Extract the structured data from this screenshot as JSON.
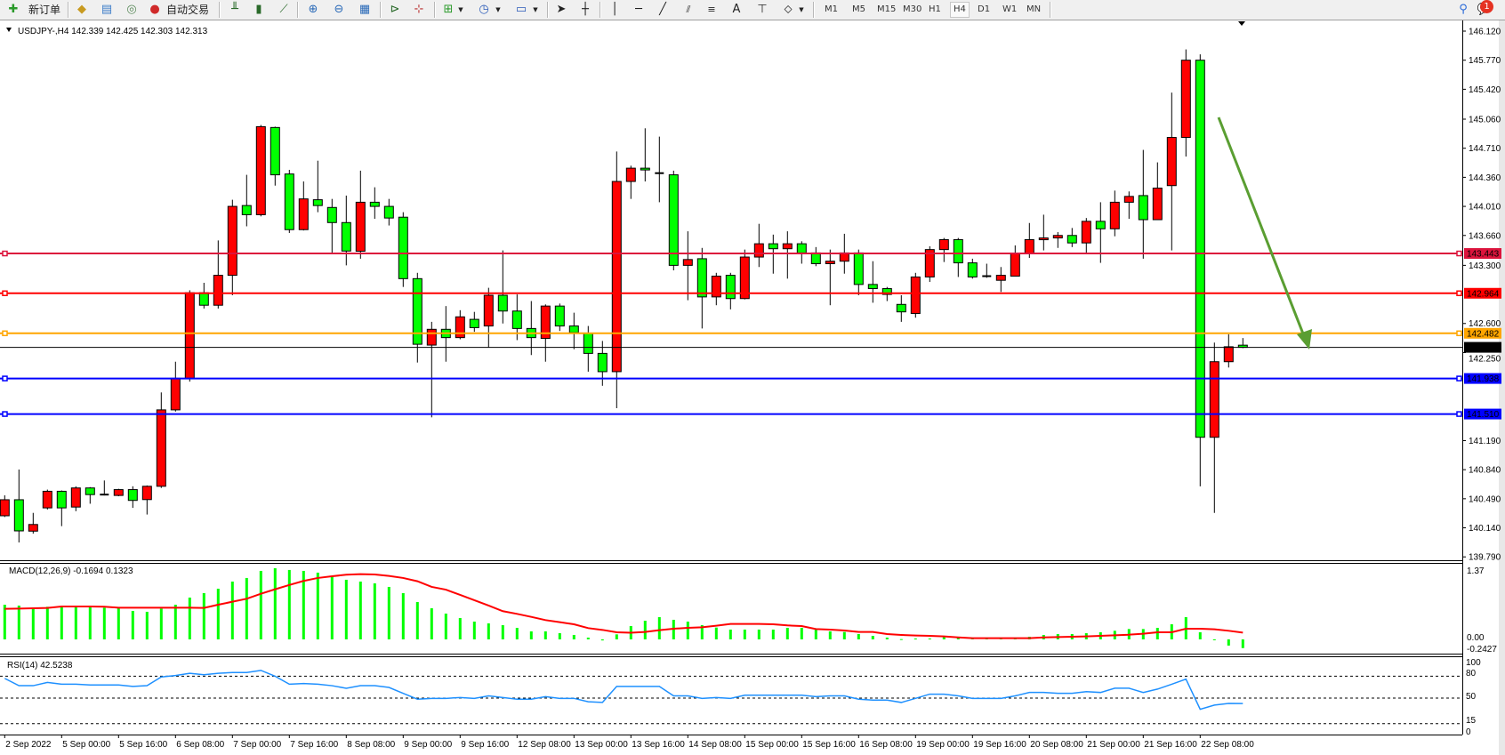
{
  "toolbar": {
    "new_order_label": "新订单",
    "auto_trading_label": "自动交易",
    "timeframes": [
      "M1",
      "M5",
      "M15",
      "M30",
      "H1",
      "H4",
      "D1",
      "W1",
      "MN"
    ],
    "active_timeframe": "H4",
    "text_tool_label": "A",
    "notification_count": "1"
  },
  "chart": {
    "symbol_header": "USDJPY-,H4  142.339 142.425 142.303 142.313",
    "colors": {
      "bull": "#ff0000",
      "bear": "#00ff00",
      "background": "#ffffff",
      "grid_axis": "#000000"
    },
    "price_axis_ticks": [
      "146.120",
      "145.770",
      "145.420",
      "145.060",
      "144.710",
      "144.360",
      "144.010",
      "143.660",
      "143.300",
      "142.600",
      "142.250",
      "141.190",
      "140.840",
      "140.490",
      "140.140",
      "139.790"
    ],
    "horizontal_lines": [
      {
        "price": "143.443",
        "color": "#dc143c"
      },
      {
        "price": "142.964",
        "color": "#ff0000"
      },
      {
        "price": "142.482",
        "color": "#ffa500"
      },
      {
        "price": "142.313",
        "color": "#000000"
      },
      {
        "price": "141.938",
        "color": "#0000ff"
      },
      {
        "price": "141.510",
        "color": "#0000ff"
      }
    ],
    "trend_arrow_color": "#5a9e32",
    "candles": [
      [
        140.285,
        140.531,
        140.27,
        140.478
      ],
      [
        140.478,
        140.842,
        139.964,
        140.103
      ],
      [
        140.1,
        140.32,
        140.07,
        140.18
      ],
      [
        140.38,
        140.6,
        140.36,
        140.58
      ],
      [
        140.58,
        140.59,
        140.16,
        140.38
      ],
      [
        140.39,
        140.64,
        140.34,
        140.62
      ],
      [
        140.62,
        140.63,
        140.43,
        140.54
      ],
      [
        140.54,
        140.71,
        140.53,
        140.54
      ],
      [
        140.53,
        140.61,
        140.52,
        140.6
      ],
      [
        140.6,
        140.64,
        140.38,
        140.47
      ],
      [
        140.48,
        140.65,
        140.3,
        140.64
      ],
      [
        140.64,
        141.77,
        140.62,
        141.56
      ],
      [
        141.56,
        142.14,
        141.54,
        141.94
      ],
      [
        141.94,
        143.0,
        141.9,
        142.97
      ],
      [
        142.97,
        143.09,
        142.78,
        142.82
      ],
      [
        142.82,
        143.6,
        142.78,
        143.18
      ],
      [
        143.18,
        144.09,
        142.94,
        144.01
      ],
      [
        144.02,
        144.39,
        143.77,
        143.91
      ],
      [
        143.91,
        144.99,
        143.89,
        144.97
      ],
      [
        144.96,
        144.97,
        144.26,
        144.39
      ],
      [
        144.4,
        144.45,
        143.69,
        143.73
      ],
      [
        143.73,
        144.31,
        143.72,
        144.1
      ],
      [
        144.09,
        144.56,
        143.94,
        144.02
      ],
      [
        143.997,
        144.1,
        143.45,
        143.815
      ],
      [
        143.815,
        144.14,
        143.3,
        143.472
      ],
      [
        143.47,
        144.44,
        143.38,
        144.06
      ],
      [
        144.06,
        144.24,
        143.86,
        144.01
      ],
      [
        144.01,
        144.1,
        143.78,
        143.87
      ],
      [
        143.88,
        143.94,
        143.04,
        143.14
      ],
      [
        143.14,
        143.21,
        142.13,
        142.35
      ],
      [
        142.34,
        142.62,
        141.47,
        142.53
      ],
      [
        142.53,
        142.81,
        142.14,
        142.43
      ],
      [
        142.43,
        142.76,
        142.41,
        142.68
      ],
      [
        142.65,
        142.74,
        142.5,
        142.55
      ],
      [
        142.57,
        143.03,
        142.31,
        142.94
      ],
      [
        142.94,
        143.48,
        142.6,
        142.75
      ],
      [
        142.75,
        142.95,
        142.4,
        142.54
      ],
      [
        142.54,
        142.87,
        142.22,
        142.43
      ],
      [
        142.42,
        142.83,
        142.14,
        142.81
      ],
      [
        142.81,
        142.84,
        142.51,
        142.57
      ],
      [
        142.57,
        142.73,
        142.29,
        142.49
      ],
      [
        142.48,
        142.57,
        142.02,
        142.24
      ],
      [
        142.24,
        142.39,
        141.85,
        142.02
      ],
      [
        142.02,
        144.67,
        141.58,
        144.31
      ],
      [
        144.31,
        144.5,
        144.1,
        144.47
      ],
      [
        144.47,
        144.95,
        144.31,
        144.45
      ],
      [
        144.41,
        144.85,
        144.06,
        144.41
      ],
      [
        144.39,
        144.44,
        143.24,
        143.3
      ],
      [
        143.3,
        143.71,
        142.88,
        143.37
      ],
      [
        143.38,
        143.51,
        142.54,
        142.92
      ],
      [
        142.92,
        143.21,
        142.82,
        143.17
      ],
      [
        143.18,
        143.21,
        142.77,
        142.9
      ],
      [
        142.9,
        143.49,
        142.89,
        143.4
      ],
      [
        143.4,
        143.8,
        143.28,
        143.56
      ],
      [
        143.56,
        143.67,
        143.2,
        143.5
      ],
      [
        143.5,
        143.71,
        143.14,
        143.56
      ],
      [
        143.56,
        143.59,
        143.32,
        143.45
      ],
      [
        143.45,
        143.52,
        143.29,
        143.32
      ],
      [
        143.32,
        143.49,
        142.82,
        143.35
      ],
      [
        143.35,
        143.68,
        143.2,
        143.45
      ],
      [
        143.45,
        143.49,
        142.94,
        143.07
      ],
      [
        143.07,
        143.35,
        142.85,
        143.02
      ],
      [
        143.02,
        143.04,
        142.87,
        142.95
      ],
      [
        142.83,
        142.94,
        142.62,
        142.74
      ],
      [
        142.72,
        143.21,
        142.67,
        143.16
      ],
      [
        143.16,
        143.53,
        143.1,
        143.49
      ],
      [
        143.49,
        143.63,
        143.34,
        143.61
      ],
      [
        143.61,
        143.63,
        143.16,
        143.33
      ],
      [
        143.33,
        143.38,
        143.14,
        143.16
      ],
      [
        143.17,
        143.32,
        143.15,
        143.17
      ],
      [
        143.12,
        143.28,
        142.98,
        143.18
      ],
      [
        143.17,
        143.54,
        143.17,
        143.44
      ],
      [
        143.44,
        143.81,
        143.39,
        143.61
      ],
      [
        143.61,
        143.91,
        143.48,
        143.63
      ],
      [
        143.63,
        143.7,
        143.51,
        143.66
      ],
      [
        143.66,
        143.75,
        143.52,
        143.57
      ],
      [
        143.57,
        143.87,
        143.45,
        143.83
      ],
      [
        143.83,
        144.06,
        143.33,
        143.74
      ],
      [
        143.74,
        144.2,
        143.65,
        144.06
      ],
      [
        144.06,
        144.19,
        143.86,
        144.13
      ],
      [
        144.14,
        144.69,
        143.38,
        143.85
      ],
      [
        143.85,
        144.54,
        143.85,
        144.23
      ],
      [
        144.26,
        145.38,
        143.48,
        144.84
      ],
      [
        144.84,
        145.9,
        144.61,
        145.77
      ],
      [
        145.77,
        145.84,
        140.64,
        141.23
      ],
      [
        141.23,
        142.37,
        140.32,
        142.14
      ],
      [
        142.14,
        142.47,
        142.07,
        142.32
      ],
      [
        142.339,
        142.425,
        142.303,
        142.313
      ]
    ],
    "price_range": [
      139.79,
      146.12
    ]
  },
  "macd": {
    "title": "MACD(12,26,9) -0.1694 0.1323",
    "axis_labels": [
      "1.37",
      "0.00",
      "-0.2427"
    ],
    "range": [
      -0.2427,
      1.37
    ],
    "histogram_color": "#00ff00",
    "signal_color": "#ff0000",
    "histogram": [
      0.676,
      0.659,
      0.6,
      0.636,
      0.647,
      0.642,
      0.642,
      0.618,
      0.607,
      0.555,
      0.538,
      0.601,
      0.676,
      0.815,
      0.902,
      0.988,
      1.127,
      1.197,
      1.335,
      1.387,
      1.353,
      1.335,
      1.301,
      1.231,
      1.162,
      1.127,
      1.092,
      1.023,
      0.902,
      0.728,
      0.607,
      0.503,
      0.416,
      0.347,
      0.312,
      0.277,
      0.225,
      0.156,
      0.156,
      0.121,
      0.087,
      0.035,
      -0.02,
      0.098,
      0.26,
      0.364,
      0.434,
      0.382,
      0.347,
      0.277,
      0.231,
      0.191,
      0.191,
      0.191,
      0.191,
      0.225,
      0.225,
      0.191,
      0.156,
      0.145,
      0.104,
      0.069,
      0.035,
      0.006,
      0.017,
      0.017,
      0.052,
      0.04,
      0.035,
      0.017,
      0.017,
      0.017,
      0.052,
      0.087,
      0.104,
      0.104,
      0.121,
      0.139,
      0.168,
      0.202,
      0.202,
      0.225,
      0.295,
      0.434,
      0.139,
      -0.012,
      -0.121,
      -0.1694
    ],
    "signal": [
      0.595,
      0.601,
      0.607,
      0.613,
      0.642,
      0.642,
      0.642,
      0.636,
      0.618,
      0.618,
      0.618,
      0.618,
      0.618,
      0.618,
      0.613,
      0.676,
      0.734,
      0.792,
      0.89,
      0.977,
      1.06,
      1.139,
      1.197,
      1.231,
      1.26,
      1.272,
      1.266,
      1.237,
      1.197,
      1.133,
      1.023,
      0.97,
      0.867,
      0.763,
      0.66,
      0.55,
      0.497,
      0.439,
      0.376,
      0.335,
      0.295,
      0.22,
      0.185,
      0.139,
      0.13,
      0.145,
      0.179,
      0.208,
      0.225,
      0.237,
      0.266,
      0.301,
      0.301,
      0.301,
      0.295,
      0.272,
      0.26,
      0.202,
      0.191,
      0.173,
      0.145,
      0.145,
      0.104,
      0.087,
      0.075,
      0.069,
      0.058,
      0.04,
      0.023,
      0.023,
      0.023,
      0.023,
      0.023,
      0.04,
      0.046,
      0.052,
      0.058,
      0.069,
      0.081,
      0.092,
      0.11,
      0.139,
      0.139,
      0.208,
      0.208,
      0.197,
      0.168,
      0.1323
    ]
  },
  "rsi": {
    "title": "RSI(14) 42.5238",
    "axis_labels": [
      "100",
      "80",
      "50",
      "15",
      "0"
    ],
    "levels": [
      80,
      50,
      15
    ],
    "line_color": "#1e90ff",
    "values": [
      77,
      67,
      67,
      71.5,
      69,
      69,
      68,
      68,
      68,
      66,
      67,
      79,
      81,
      84,
      82,
      84,
      85,
      85,
      88,
      80,
      69,
      70,
      69,
      67,
      63.5,
      67,
      67,
      64.6,
      56.5,
      48.5,
      49.6,
      49.6,
      50.8,
      49.6,
      53,
      50.8,
      48.5,
      48.5,
      52,
      49.6,
      49.6,
      45,
      44,
      66,
      66,
      66,
      66,
      53,
      53,
      49.6,
      50.8,
      49.6,
      54,
      54,
      54,
      54,
      54,
      52,
      53,
      53,
      48.5,
      47.3,
      47.3,
      44,
      49.6,
      55.4,
      55.4,
      53,
      49.6,
      49.6,
      49.6,
      53,
      57.7,
      57.7,
      56.5,
      56.5,
      58.8,
      57.7,
      63.5,
      63.5,
      57.7,
      62.3,
      69,
      76,
      34.6,
      40.4,
      42.7,
      42.5238
    ]
  },
  "time_axis": [
    "2 Sep 2022",
    "5 Sep 00:00",
    "5 Sep 16:00",
    "6 Sep 08:00",
    "7 Sep 00:00",
    "7 Sep 16:00",
    "8 Sep 08:00",
    "9 Sep 00:00",
    "9 Sep 16:00",
    "12 Sep 08:00",
    "13 Sep 00:00",
    "13 Sep 16:00",
    "14 Sep 08:00",
    "15 Sep 00:00",
    "15 Sep 16:00",
    "16 Sep 08:00",
    "19 Sep 00:00",
    "19 Sep 16:00",
    "20 Sep 08:00",
    "21 Sep 00:00",
    "21 Sep 16:00",
    "22 Sep 08:00"
  ]
}
